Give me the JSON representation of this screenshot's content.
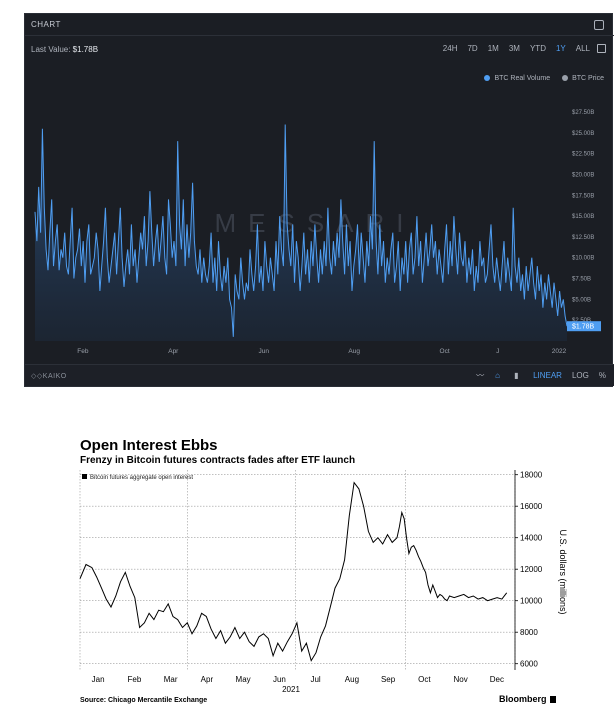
{
  "panel1": {
    "title": "CHART",
    "last_value_label": "Last Value:",
    "last_value": "$1.78B",
    "ranges": [
      "24H",
      "7D",
      "1M",
      "3M",
      "YTD",
      "1Y",
      "ALL"
    ],
    "active_range": "1Y",
    "legend": [
      {
        "label": "BTC Real Volume",
        "color": "#4f9ef2"
      },
      {
        "label": "BTC Price",
        "color": "#9aa0aa"
      }
    ],
    "watermark": "MESSARI",
    "source": "KAIKO",
    "scale_options": [
      "LINEAR",
      "LOG",
      "%"
    ],
    "active_scale": "LINEAR",
    "tool_icons": [
      "line-chart-icon",
      "area-chart-icon",
      "bar-chart-icon"
    ]
  },
  "panel2": {
    "title": "Open Interest Ebbs",
    "subtitle": "Frenzy in Bitcoin futures contracts fades after ETF launch",
    "legend_label": "Bitcoin futures aggregate open interest",
    "source": "Source: Chicago Mercantile Exchange",
    "brand": "Bloomberg"
  },
  "chart_data": [
    {
      "type": "area",
      "series": [
        {
          "name": "BTC Real Volume",
          "color": "#4f9ef2"
        }
      ],
      "y_ticks": [
        "$27.50B",
        "$25.00B",
        "$22.50B",
        "$20.00B",
        "$17.50B",
        "$15.00B",
        "$12.50B",
        "$10.00B",
        "$7.50B",
        "$5.00B",
        "$2.50B"
      ],
      "ylim": [
        0,
        27.5
      ],
      "y_unit": "billions USD",
      "x_ticks": [
        "Feb",
        "Apr",
        "Jun",
        "Aug",
        "Oct",
        "J",
        "2022"
      ],
      "x_tick_pos": [
        0.09,
        0.26,
        0.43,
        0.6,
        0.77,
        0.87,
        0.985
      ],
      "last_value_tag": "$1.78B",
      "values": [
        15.5,
        12,
        18.5,
        13,
        25.5,
        16,
        11,
        8.5,
        13,
        17,
        9,
        12,
        14,
        8.5,
        11,
        10,
        13,
        9,
        8,
        12,
        16,
        7.5,
        10,
        11,
        13.5,
        9,
        12,
        7,
        12,
        14,
        8,
        9,
        10,
        13,
        11,
        6,
        9,
        12,
        16,
        10,
        7,
        9,
        11,
        13,
        8,
        12,
        16,
        10,
        6.5,
        9,
        11,
        8,
        14,
        9,
        11,
        7,
        10,
        13,
        11,
        15,
        9,
        12,
        18,
        13,
        9,
        12,
        14,
        9.5,
        12,
        15,
        10,
        8,
        17,
        14,
        10,
        12,
        9,
        24,
        14,
        11,
        17,
        9,
        14,
        10,
        13,
        19,
        12,
        9,
        8,
        11,
        7,
        10,
        8,
        7,
        9,
        13,
        7,
        10,
        6,
        12,
        8,
        6,
        9,
        7,
        10,
        5,
        4,
        0.5,
        8,
        6,
        5,
        10,
        7,
        5,
        7,
        6,
        11,
        8,
        6,
        9,
        14,
        7,
        9,
        6,
        12,
        9,
        7,
        10,
        8,
        6,
        12,
        8,
        15,
        11,
        9,
        26,
        14,
        11,
        9,
        14,
        7,
        12,
        10,
        6,
        9,
        13,
        8,
        11,
        7,
        12,
        9,
        14,
        10,
        7,
        11,
        8,
        12,
        9,
        16,
        10,
        8,
        12,
        9,
        13,
        10,
        17,
        12,
        8,
        14,
        9,
        12,
        6,
        9,
        11,
        14,
        8,
        13,
        10,
        7,
        12,
        9,
        15,
        11,
        24,
        12,
        8,
        14,
        9,
        12,
        7,
        10,
        8,
        11,
        13,
        7,
        9,
        12,
        6,
        10,
        8,
        12,
        7,
        11,
        13,
        8,
        10,
        15,
        9,
        12,
        7,
        10,
        13,
        9,
        11,
        14,
        10,
        12,
        8,
        11,
        9,
        7,
        11,
        14,
        8,
        12,
        9,
        15,
        11,
        8,
        13,
        10,
        9,
        12,
        7,
        10,
        8,
        11,
        6,
        9,
        7,
        12,
        9,
        10,
        7,
        8,
        11,
        14,
        9,
        7,
        10,
        8,
        6,
        9,
        12,
        7,
        10,
        8,
        6,
        16,
        9,
        7,
        10,
        6,
        8,
        5,
        9,
        6,
        8,
        10,
        7,
        5,
        9,
        6,
        8,
        4,
        7,
        5,
        8,
        6,
        4,
        7,
        5,
        3,
        6,
        4,
        5,
        3,
        1.78
      ],
      "peaks_note": ""
    },
    {
      "type": "line",
      "title": "Open Interest Ebbs",
      "subtitle": "Frenzy in Bitcoin futures contracts fades after ETF launch",
      "series": [
        {
          "name": "Bitcoin futures aggregate open interest"
        }
      ],
      "ylabel": "U.S. dollars (millions)",
      "y_ticks": [
        6000,
        8000,
        10000,
        12000,
        14000,
        16000,
        18000
      ],
      "ylim": [
        5600,
        18300
      ],
      "x_ticks": [
        "Jan",
        "Feb",
        "Mar",
        "Apr",
        "May",
        "Jun",
        "Jul",
        "Aug",
        "Sep",
        "Oct",
        "Nov",
        "Dec"
      ],
      "x_year": "2021",
      "x": [
        0,
        5,
        10,
        14,
        18,
        22,
        26,
        30,
        34,
        38,
        42,
        46,
        50,
        54,
        58,
        62,
        66,
        70,
        74,
        78,
        82,
        86,
        90,
        94,
        98,
        102,
        106,
        110,
        114,
        118,
        122,
        126,
        130,
        134,
        138,
        142,
        146,
        150,
        154,
        158,
        162,
        166,
        170,
        174,
        178,
        182,
        186,
        190,
        194,
        198,
        202,
        206,
        210,
        214,
        218,
        222,
        226,
        230,
        234,
        238,
        242,
        246,
        250,
        254,
        258,
        262,
        266,
        268,
        270,
        272,
        274,
        276,
        278,
        280,
        282,
        284,
        286,
        288,
        290,
        292,
        294,
        296,
        298,
        300,
        302,
        304,
        306,
        308,
        310,
        314,
        318,
        322,
        326,
        330,
        334,
        338,
        342,
        346,
        350,
        354,
        358
      ],
      "values": [
        11400,
        12300,
        12100,
        11500,
        10800,
        10100,
        9600,
        10300,
        11200,
        11800,
        10900,
        10200,
        8300,
        8600,
        9200,
        8800,
        9400,
        9300,
        9800,
        9000,
        8800,
        8300,
        8600,
        7900,
        8400,
        9200,
        9000,
        8200,
        7600,
        8100,
        7300,
        7700,
        8300,
        7600,
        8000,
        7400,
        7100,
        7700,
        7900,
        7600,
        6500,
        7300,
        6800,
        7400,
        7900,
        8600,
        6800,
        7300,
        6200,
        6700,
        7700,
        8400,
        9600,
        10800,
        11400,
        12600,
        15400,
        17500,
        17100,
        16000,
        14400,
        13700,
        14000,
        13600,
        14200,
        13700,
        14000,
        14700,
        15600,
        15200,
        14000,
        13000,
        13400,
        13500,
        13200,
        12800,
        12500,
        12100,
        11800,
        11000,
        10500,
        11000,
        10600,
        10200,
        10400,
        10300,
        10100,
        10000,
        10300,
        10200,
        10300,
        10400,
        10200,
        10300,
        10100,
        10200,
        10000,
        10100,
        10200,
        10100,
        10500
      ]
    }
  ]
}
